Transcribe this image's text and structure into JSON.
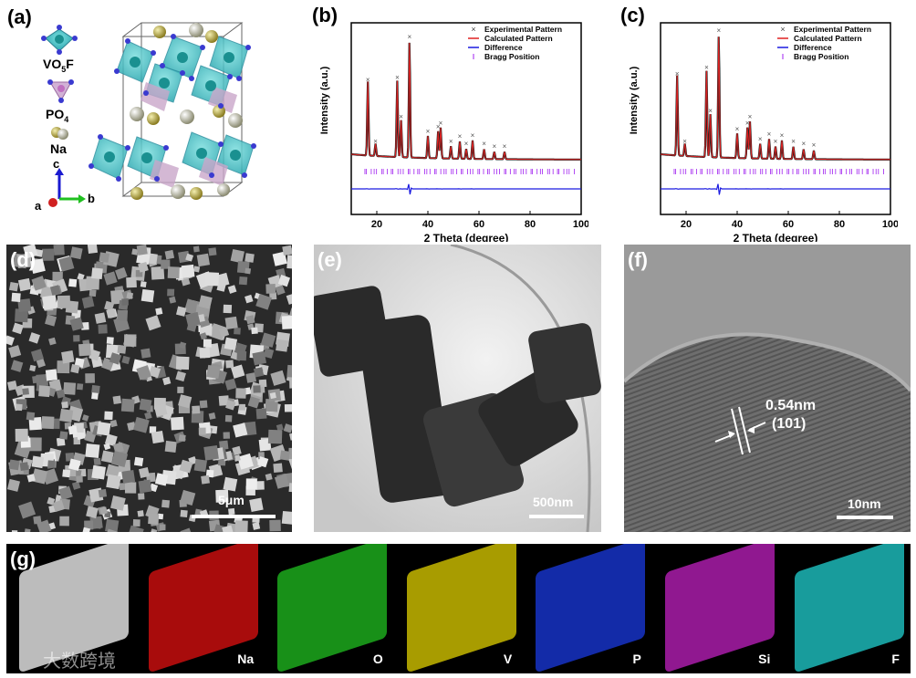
{
  "panels": {
    "a": {
      "label": "(a)",
      "legend": [
        {
          "name": "VO",
          "sub": "5",
          "suffix": "F",
          "color": "#3fbfbf"
        },
        {
          "name": "PO",
          "sub": "4",
          "suffix": "",
          "color": "#c9a6c9"
        },
        {
          "name": "Na",
          "sub": "",
          "suffix": "",
          "color": "#d8d0a0"
        }
      ],
      "axes": {
        "c": "c",
        "a": "a",
        "b": "b"
      }
    },
    "b": {
      "label": "(b)"
    },
    "c": {
      "label": "(c)"
    },
    "d": {
      "label": "(d)",
      "scale": "5μm"
    },
    "e": {
      "label": "(e)",
      "scale": "500nm"
    },
    "f": {
      "label": "(f)",
      "scale": "10nm",
      "spacing": "0.54nm",
      "plane": "(101)"
    },
    "g": {
      "label": "(g)",
      "maps": [
        {
          "element": "",
          "color": "#dddddd"
        },
        {
          "element": "Na",
          "color": "#e01010"
        },
        {
          "element": "O",
          "color": "#20c020"
        },
        {
          "element": "V",
          "color": "#e0d000"
        },
        {
          "element": "P",
          "color": "#1a3ae0"
        },
        {
          "element": "Si",
          "color": "#c020c0"
        },
        {
          "element": "F",
          "color": "#20d0d0"
        }
      ]
    }
  },
  "watermark": "大数跨境",
  "chart_data": [
    {
      "type": "line",
      "panel": "b",
      "xlabel": "2 Theta (degree)",
      "ylabel": "Intensity (a.u.)",
      "xlim": [
        10,
        100
      ],
      "xticks": [
        "20",
        "40",
        "60",
        "80",
        "100"
      ],
      "legend_position": "top-right",
      "series": [
        {
          "name": "Experimental Pattern",
          "color": "#444444"
        },
        {
          "name": "Calculated Pattern",
          "color": "#e02020"
        },
        {
          "name": "Difference",
          "color": "#1a1ae0"
        },
        {
          "name": "Bragg Position",
          "color": "#a020f0"
        }
      ],
      "peaks": [
        [
          16.5,
          0.6
        ],
        [
          19.5,
          0.1
        ],
        [
          28,
          0.62
        ],
        [
          29.5,
          0.3
        ],
        [
          32.8,
          0.95
        ],
        [
          40,
          0.18
        ],
        [
          44,
          0.22
        ],
        [
          45,
          0.25
        ],
        [
          49,
          0.1
        ],
        [
          52.5,
          0.14
        ],
        [
          55,
          0.08
        ],
        [
          57.5,
          0.15
        ],
        [
          62,
          0.08
        ],
        [
          66,
          0.06
        ],
        [
          70,
          0.06
        ]
      ]
    },
    {
      "type": "line",
      "panel": "c",
      "xlabel": "2 Theta (degree)",
      "ylabel": "Intensity (a.u.)",
      "xlim": [
        10,
        100
      ],
      "xticks": [
        "20",
        "40",
        "60",
        "80",
        "100"
      ],
      "legend_position": "top-right",
      "series": [
        {
          "name": "Experimental Pattern",
          "color": "#444444"
        },
        {
          "name": "Calculated Pattern",
          "color": "#e02020"
        },
        {
          "name": "Difference",
          "color": "#1a1ae0"
        },
        {
          "name": "Bragg Position",
          "color": "#a020f0"
        }
      ],
      "peaks": [
        [
          16.5,
          0.65
        ],
        [
          19.5,
          0.1
        ],
        [
          28,
          0.7
        ],
        [
          29.5,
          0.35
        ],
        [
          32.8,
          1.0
        ],
        [
          40,
          0.2
        ],
        [
          44,
          0.25
        ],
        [
          45,
          0.3
        ],
        [
          49,
          0.12
        ],
        [
          52.5,
          0.16
        ],
        [
          55,
          0.1
        ],
        [
          57.5,
          0.15
        ],
        [
          62,
          0.1
        ],
        [
          66,
          0.08
        ],
        [
          70,
          0.07
        ]
      ]
    }
  ]
}
